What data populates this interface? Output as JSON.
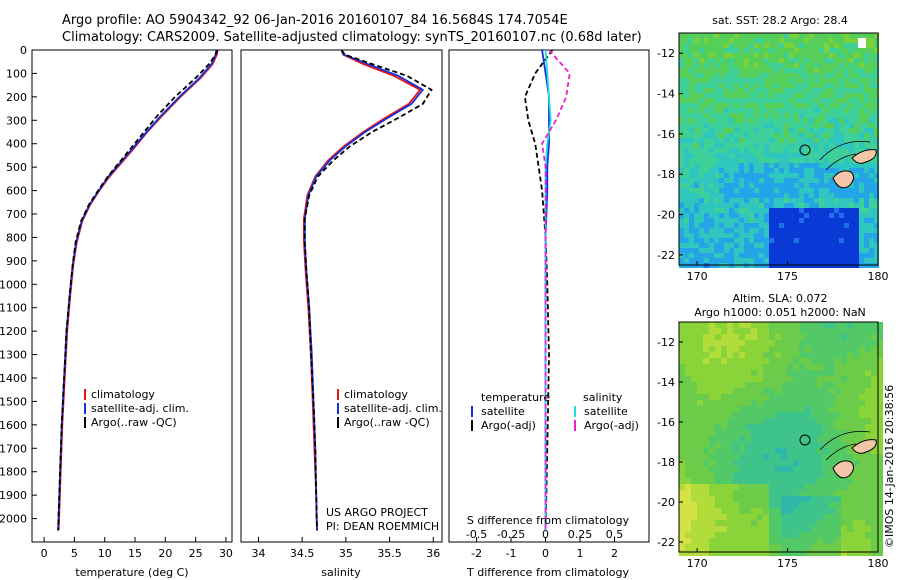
{
  "header": {
    "line1": "Argo profile: AO 5904342_92 06-Jan-2016 20160107_84 16.5684S 174.7054E",
    "line2": "Climatology: CARS2009. Satellite-adjusted climatology: synTS_20160107.nc (0.68d later)"
  },
  "colors": {
    "climatology": "#ee1111",
    "satellite": "#1133dd",
    "argo": "#000000",
    "salinity_satellite": "#22dddd",
    "salinity_argo": "#ee22cc"
  },
  "chart_data": [
    {
      "type": "line",
      "xlabel": "temperature (deg C)",
      "ylabel": "",
      "xlim": [
        -2,
        31
      ],
      "ylim": [
        2100,
        0
      ],
      "xticks": [
        "0",
        "5",
        "10",
        "15",
        "20",
        "25",
        "30"
      ],
      "yticks": [
        "0",
        "100",
        "200",
        "300",
        "400",
        "500",
        "600",
        "700",
        "800",
        "900",
        "1000",
        "1100",
        "1200",
        "1300",
        "1400",
        "1500",
        "1600",
        "1700",
        "1800",
        "1900",
        "2000"
      ],
      "legend": [
        "climatology",
        "satellite-adj. clim.",
        "Argo(..raw -QC)"
      ],
      "series": [
        {
          "name": "climatology",
          "x": [
            28.6,
            28.5,
            27.8,
            25.8,
            22.5,
            19.5,
            17.0,
            14.8,
            12.8,
            10.8,
            9.1,
            7.6,
            6.3,
            5.4,
            4.8,
            4.3,
            3.8,
            3.4,
            3.0,
            2.6,
            2.4
          ],
          "y": [
            0,
            20,
            60,
            120,
            200,
            280,
            350,
            420,
            480,
            540,
            600,
            660,
            730,
            820,
            920,
            1050,
            1200,
            1400,
            1600,
            1900,
            2050
          ]
        },
        {
          "name": "satellite-adj. clim.",
          "x": [
            28.4,
            28.3,
            27.6,
            25.6,
            22.3,
            19.3,
            16.9,
            14.6,
            12.6,
            10.6,
            9.0,
            7.5,
            6.2,
            5.3,
            4.7,
            4.2,
            3.7,
            3.3,
            2.9,
            2.5,
            2.3
          ],
          "y": [
            0,
            20,
            60,
            120,
            200,
            280,
            350,
            420,
            480,
            540,
            600,
            660,
            730,
            820,
            920,
            1050,
            1200,
            1400,
            1600,
            1900,
            2050
          ]
        },
        {
          "name": "Argo(..raw -QC)",
          "x": [
            28.6,
            28.3,
            27.2,
            25.0,
            21.6,
            18.7,
            16.5,
            14.3,
            12.4,
            10.5,
            8.9,
            7.4,
            6.1,
            5.2,
            4.7,
            4.2,
            3.7,
            3.3,
            2.9,
            2.5,
            2.3
          ],
          "y": [
            0,
            20,
            60,
            120,
            200,
            280,
            350,
            420,
            480,
            540,
            600,
            660,
            730,
            820,
            920,
            1050,
            1200,
            1400,
            1600,
            1900,
            2050
          ]
        }
      ]
    },
    {
      "type": "line",
      "xlabel": "salinity",
      "xlim": [
        33.8,
        36.1
      ],
      "ylim": [
        2100,
        0
      ],
      "xticks": [
        "34",
        "34.5",
        "35",
        "35.5",
        "36"
      ],
      "legend": [
        "climatology",
        "satellite-adj. clim.",
        "Argo(..raw -QC)"
      ],
      "annotation": [
        "US ARGO PROJECT",
        "PI: DEAN ROEMMICH"
      ],
      "series": [
        {
          "name": "climatology",
          "x": [
            34.95,
            34.97,
            35.2,
            35.55,
            35.85,
            35.72,
            35.45,
            35.2,
            34.98,
            34.8,
            34.65,
            34.56,
            34.52,
            34.52,
            34.54,
            34.57,
            34.6,
            34.62,
            34.64,
            34.66,
            34.67
          ],
          "y": [
            0,
            20,
            60,
            110,
            170,
            230,
            290,
            350,
            410,
            470,
            540,
            620,
            720,
            820,
            950,
            1100,
            1300,
            1500,
            1700,
            1900,
            2050
          ]
        },
        {
          "name": "satellite-adj. clim.",
          "x": [
            34.95,
            34.98,
            35.25,
            35.6,
            35.88,
            35.75,
            35.48,
            35.22,
            35.0,
            34.82,
            34.66,
            34.57,
            34.53,
            34.53,
            34.55,
            34.58,
            34.61,
            34.63,
            34.65,
            34.66,
            34.67
          ],
          "y": [
            0,
            20,
            60,
            110,
            170,
            230,
            290,
            350,
            410,
            470,
            540,
            620,
            720,
            820,
            950,
            1100,
            1300,
            1500,
            1700,
            1900,
            2050
          ]
        },
        {
          "name": "Argo(..raw -QC)",
          "x": [
            34.95,
            34.99,
            35.3,
            35.7,
            35.98,
            35.88,
            35.6,
            35.3,
            35.05,
            34.86,
            34.68,
            34.58,
            34.53,
            34.53,
            34.55,
            34.58,
            34.6,
            34.63,
            34.65,
            34.66,
            34.67
          ],
          "y": [
            0,
            20,
            60,
            110,
            170,
            230,
            290,
            350,
            410,
            470,
            540,
            620,
            720,
            820,
            950,
            1100,
            1300,
            1500,
            1700,
            1900,
            2050
          ]
        }
      ]
    },
    {
      "type": "line",
      "xlabel": "T difference from climatology",
      "xlabel2": "S difference from climatology",
      "xlim": [
        -2.8,
        3.0
      ],
      "ylim": [
        2100,
        0
      ],
      "xticks": [
        "-2",
        "-1",
        "0",
        "1",
        "2"
      ],
      "xticks_top": [
        "-0.5",
        "-0.25",
        "0",
        "0.25",
        "0.5"
      ],
      "legend_headers": [
        "temperature",
        "salinity"
      ],
      "legend": [
        "satellite",
        "Argo(-adj)",
        "satellite",
        "Argo(-adj)"
      ],
      "series": [
        {
          "name": "satellite",
          "x": [
            -0.1,
            0.0,
            0.1,
            0.1,
            0.1,
            0.05,
            0.05,
            0.0,
            0.0,
            0.0,
            0.0,
            0.0
          ],
          "y": [
            0,
            100,
            200,
            300,
            400,
            500,
            600,
            800,
            1000,
            1300,
            1700,
            2050
          ]
        },
        {
          "name": "Argo(-adj)",
          "x": [
            0.2,
            -0.3,
            -0.6,
            -0.5,
            -0.3,
            -0.2,
            -0.1,
            0.0,
            0.05,
            0.1,
            0.05,
            0.0
          ],
          "y": [
            0,
            100,
            200,
            300,
            400,
            500,
            600,
            800,
            1000,
            1300,
            1700,
            2050
          ]
        },
        {
          "name": "satellite",
          "x": [
            0.0,
            0.05,
            0.1,
            0.15,
            0.05,
            0.0,
            0.0,
            0.0,
            0.0,
            0.0,
            0.0,
            0.0
          ],
          "y": [
            0,
            100,
            200,
            300,
            400,
            500,
            600,
            800,
            1000,
            1300,
            1700,
            2050
          ]
        },
        {
          "name": "Argo(-adj)",
          "x": [
            0.1,
            0.7,
            0.6,
            0.3,
            -0.1,
            0.0,
            0.0,
            0.0,
            0.0,
            0.0,
            0.0,
            0.0
          ],
          "y": [
            0,
            100,
            200,
            300,
            400,
            500,
            600,
            800,
            1000,
            1300,
            1700,
            2050
          ]
        }
      ]
    },
    {
      "type": "heatmap",
      "title": "sat. SST: 28.2 Argo: 28.4",
      "xticks": [
        "170",
        "175",
        "180"
      ],
      "yticks": [
        "-12",
        "-14",
        "-16",
        "-18",
        "-20",
        "-22"
      ],
      "xlim": [
        169,
        180
      ],
      "ylim": [
        -22.5,
        -11
      ]
    },
    {
      "type": "heatmap",
      "title_line1": "Altim. SLA: 0.072",
      "title_line2": "Argo h1000: 0.051 h2000: NaN",
      "xticks": [
        "170",
        "175",
        "180"
      ],
      "yticks": [
        "-12",
        "-14",
        "-16",
        "-18",
        "-20",
        "-22"
      ],
      "xlim": [
        169,
        180
      ],
      "ylim": [
        -22.5,
        -11
      ]
    }
  ],
  "credit": "©IMOS 14-Jan-2016 20:38:56"
}
